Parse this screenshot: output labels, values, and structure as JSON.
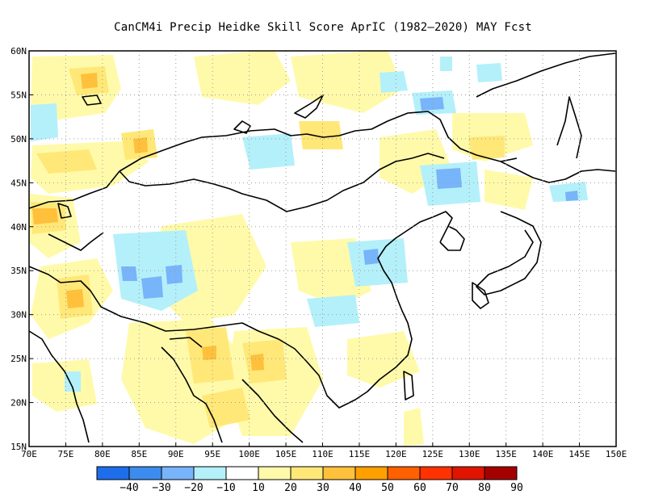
{
  "title": "CanCM4i Precip Heidke Skill Score AprIC (1982–2020) MAY Fcst",
  "map": {
    "lon_ticks": [
      "70E",
      "75E",
      "80E",
      "85E",
      "90E",
      "95E",
      "100E",
      "105E",
      "110E",
      "115E",
      "120E",
      "125E",
      "130E",
      "135E",
      "140E",
      "145E",
      "150E"
    ],
    "lat_ticks": [
      "15N",
      "20N",
      "25N",
      "30N",
      "35N",
      "40N",
      "45N",
      "50N",
      "55N",
      "60N"
    ],
    "lon_range": [
      70,
      150
    ],
    "lat_range": [
      15,
      60
    ],
    "grid": "dotted"
  },
  "colorbar": {
    "labels": [
      "−40",
      "−30",
      "−20",
      "−10",
      "10",
      "20",
      "30",
      "40",
      "50",
      "60",
      "70",
      "80",
      "90"
    ],
    "colors": [
      "#1e6eeb",
      "#3c8cf0",
      "#78b4fa",
      "#b4f0fa",
      "#ffffff",
      "#fffaaa",
      "#ffe878",
      "#ffc03c",
      "#ffa000",
      "#ff6000",
      "#ff3200",
      "#e11400",
      "#a50000"
    ]
  },
  "fields": {
    "positive_light": "#fffaaa",
    "positive_mid": "#ffe878",
    "positive_strong": "#ffc03c",
    "negative_light": "#b4f0fa",
    "negative_mid": "#78b4fa"
  }
}
